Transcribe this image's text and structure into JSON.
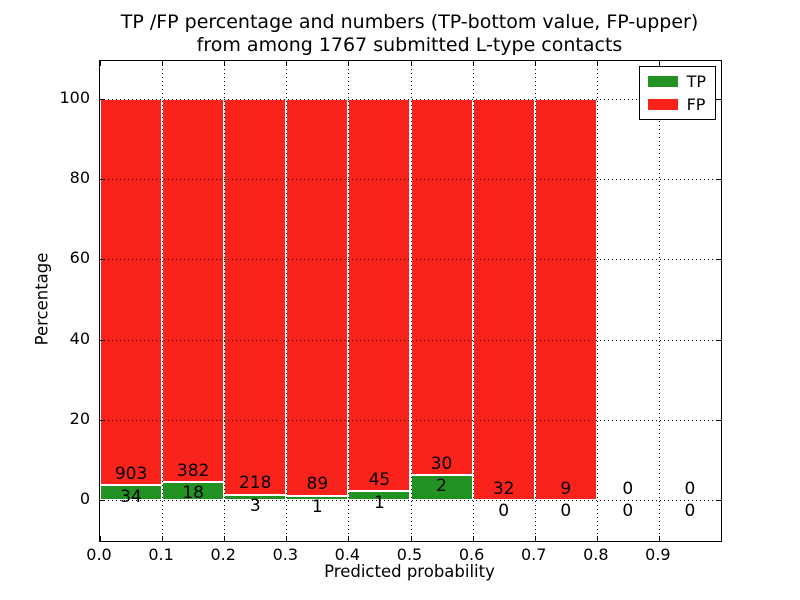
{
  "figure": {
    "background": "#ffffff",
    "text_color": "#000000"
  },
  "chart_data": {
    "type": "bar",
    "stacked": true,
    "title": "TP /FP percentage and numbers (TP-bottom value, FP-upper) from among 1767 submitted L-type contacts",
    "title_line1": "TP /FP percentage and numbers (TP-bottom value, FP-upper)",
    "title_line2": "from among 1767 submitted L-type contacts",
    "xlabel": "Predicted probability",
    "ylabel": "Percentage",
    "total_submitted": 1767,
    "bin_starts": [
      0.0,
      0.1,
      0.2,
      0.3,
      0.4,
      0.5,
      0.6,
      0.7,
      0.8,
      0.9
    ],
    "bin_width": 0.1,
    "series": [
      {
        "name": "TP",
        "color": "#229322",
        "counts": [
          34,
          18,
          3,
          1,
          1,
          2,
          0,
          0,
          0,
          0
        ]
      },
      {
        "name": "FP",
        "color": "#fa231b",
        "counts": [
          903,
          382,
          218,
          89,
          45,
          30,
          32,
          9,
          0,
          0
        ]
      }
    ],
    "bar_value_note": "each bin shows TP and FP as stacked percentages of the bin total (stack sums to 100%); annotations are raw counts, FP above the TP/FP boundary and TP below it",
    "xticks": [
      "0.0",
      "0.1",
      "0.2",
      "0.3",
      "0.4",
      "0.5",
      "0.6",
      "0.7",
      "0.8",
      "0.9"
    ],
    "yticks": [
      0,
      20,
      40,
      60,
      80,
      100
    ],
    "xlim": [
      0.0,
      1.0
    ],
    "ylim": [
      -10,
      110
    ],
    "grid": "dotted",
    "legend": {
      "position": "upper right",
      "entries": [
        "TP",
        "FP"
      ]
    }
  }
}
